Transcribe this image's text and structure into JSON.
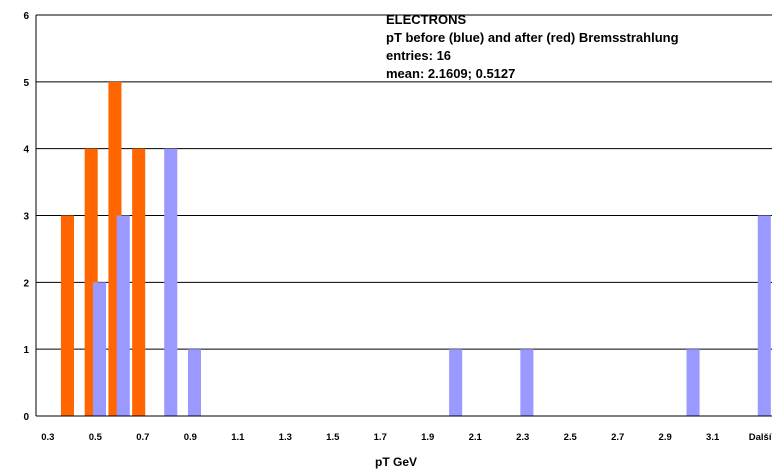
{
  "chart_data": {
    "type": "bar",
    "title": "ELECTRONS",
    "subtitle": "pT before (blue) and after (red) Bremsstrahlung",
    "annotations": [
      "entries: 16",
      "mean: 2.1609; 0.5127"
    ],
    "xlabel": "pT GeV",
    "ylabel": "",
    "ylim": [
      0,
      6
    ],
    "yticks": [
      0,
      1,
      2,
      3,
      4,
      5,
      6
    ],
    "grid": true,
    "categories": [
      "0.3",
      "0.4",
      "0.5",
      "0.6",
      "0.7",
      "0.8",
      "0.9",
      "1.0",
      "1.1",
      "1.2",
      "1.3",
      "1.4",
      "1.5",
      "1.6",
      "1.7",
      "1.8",
      "1.9",
      "2.0",
      "2.1",
      "2.2",
      "2.3",
      "2.4",
      "2.5",
      "2.6",
      "2.7",
      "2.8",
      "2.9",
      "3.0",
      "3.1",
      "3.2",
      "Další"
    ],
    "tick_labels": [
      "0.3",
      "0.5",
      "0.7",
      "0.9",
      "1.1",
      "1.3",
      "1.5",
      "1.7",
      "1.9",
      "2.1",
      "2.3",
      "2.5",
      "2.7",
      "2.9",
      "3.1",
      "Další"
    ],
    "series": [
      {
        "name": "after (red)",
        "color": "#ff6600",
        "values": [
          0,
          3,
          4,
          5,
          4,
          0,
          0,
          0,
          0,
          0,
          0,
          0,
          0,
          0,
          0,
          0,
          0,
          0,
          0,
          0,
          0,
          0,
          0,
          0,
          0,
          0,
          0,
          0,
          0,
          0,
          0
        ]
      },
      {
        "name": "before (blue)",
        "color": "#9999ff",
        "values": [
          0,
          0,
          2,
          3,
          0,
          4,
          1,
          0,
          0,
          0,
          0,
          0,
          0,
          0,
          0,
          0,
          0,
          1,
          0,
          0,
          1,
          0,
          0,
          0,
          0,
          0,
          0,
          1,
          0,
          0,
          3
        ]
      }
    ]
  }
}
